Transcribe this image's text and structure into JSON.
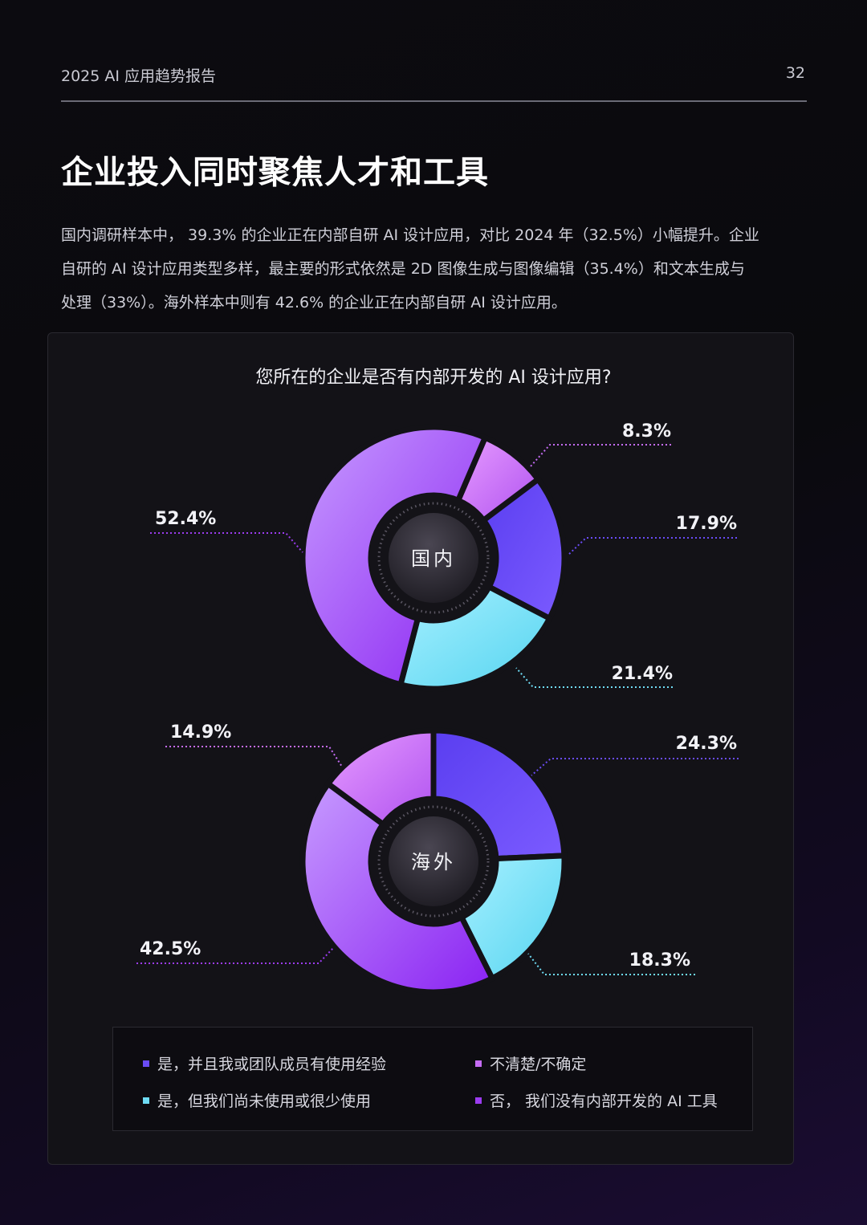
{
  "header": {
    "report_title": "2025 AI 应用趋势报告",
    "page_number": "32"
  },
  "page_title": "企业投入同时聚焦人才和工具",
  "paragraph_lines": [
    "国内调研样本中， 39.3% 的企业正在内部自研 AI 设计应用，对比 2024 年（32.5%）小幅提升。企业",
    "自研的 AI 设计应用类型多样，最主要的形式依然是 2D 图像生成与图像编辑（35.4%）和文本生成与",
    "处理（33%）。海外样本中则有 42.6% 的企业正在内部自研 AI 设计应用。"
  ],
  "colors": {
    "yes_experienced": "#6a4cf6",
    "unsure": "#c56cf5",
    "yes_rarely": "#6edbf4",
    "no": "#9b3cf0"
  },
  "chart_data": {
    "type": "pie",
    "title": "您所在的企业是否有内部开发的 AI 设计应用?",
    "legend_position": "bottom",
    "categories": [
      "是，并且我或团队成员有使用经验",
      "不清楚/不确定",
      "是，但我们尚未使用或很少使用",
      "否，我们没有内部开发的 AI 工具"
    ],
    "legend_labels": [
      "是，并且我或团队成员有使用经验",
      "不清楚/不确定",
      "是，但我们尚未使用或很少使用",
      "否，  我们没有内部开发的 AI 工具"
    ],
    "pies": [
      {
        "name": "国内",
        "slices": [
          {
            "category": "不清楚/不确定",
            "value": 8.3,
            "label": "8.3%"
          },
          {
            "category": "是，并且我或团队成员有使用经验",
            "value": 17.9,
            "label": "17.9%"
          },
          {
            "category": "是，但我们尚未使用或很少使用",
            "value": 21.4,
            "label": "21.4%"
          },
          {
            "category": "否，我们没有内部开发的 AI 工具",
            "value": 52.4,
            "label": "52.4%"
          }
        ]
      },
      {
        "name": "海外",
        "slices": [
          {
            "category": "是，并且我或团队成员有使用经验",
            "value": 24.3,
            "label": "24.3%"
          },
          {
            "category": "是，但我们尚未使用或很少使用",
            "value": 18.3,
            "label": "18.3%"
          },
          {
            "category": "否，我们没有内部开发的 AI 工具",
            "value": 42.5,
            "label": "42.5%"
          },
          {
            "category": "不清楚/不确定",
            "value": 14.9,
            "label": "14.9%"
          }
        ]
      }
    ]
  }
}
